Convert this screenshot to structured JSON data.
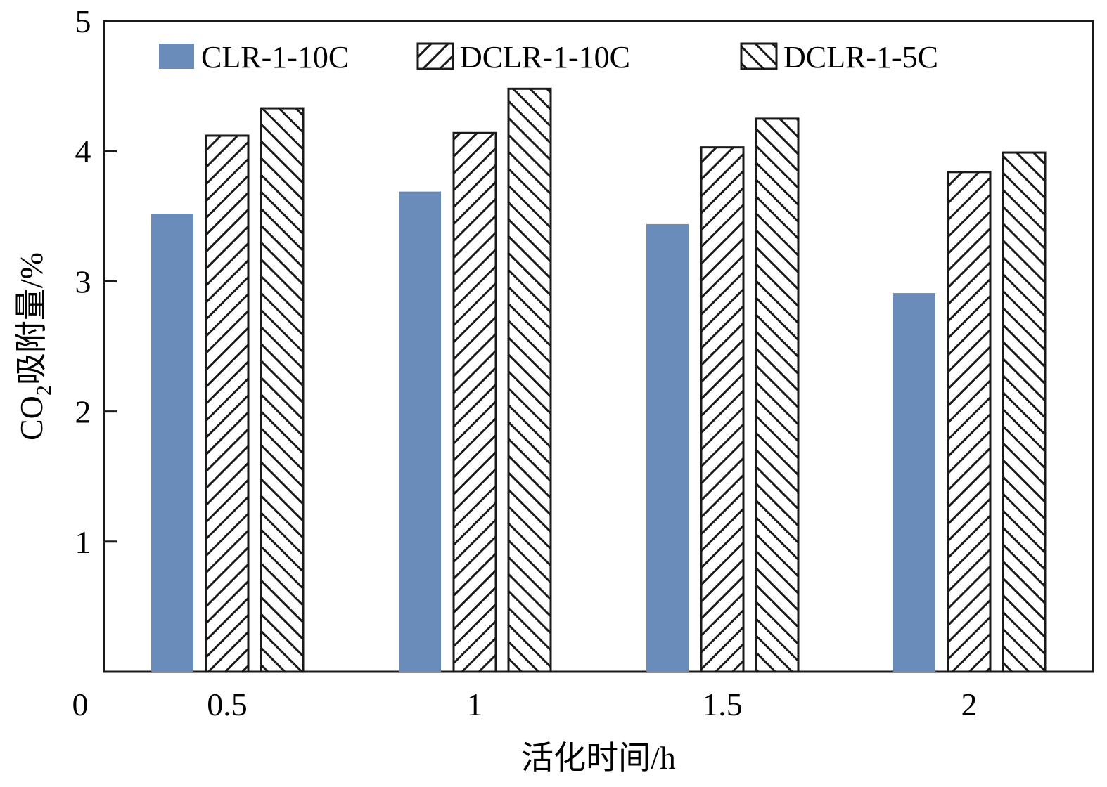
{
  "chart_data": {
    "type": "bar",
    "title": "",
    "xlabel": "活化时间/h",
    "ylabel": {
      "main": "CO",
      "subscript": "2",
      "rest": "吸附量/%"
    },
    "categories": [
      "0.5",
      "1",
      "1.5",
      "2"
    ],
    "origin_label": "0",
    "ylim": [
      0,
      5
    ],
    "yticks": [
      1,
      2,
      3,
      4,
      5
    ],
    "grid": false,
    "legend_position": "top",
    "series": [
      {
        "name": "CLR-1-10C",
        "values": [
          3.52,
          3.69,
          3.44,
          2.91
        ],
        "color": "#6a8cba",
        "pattern": "solid"
      },
      {
        "name": "DCLR-1-10C",
        "values": [
          4.12,
          4.14,
          4.03,
          3.84
        ],
        "color": "#1a1a1a",
        "pattern": "hatch-forward"
      },
      {
        "name": "DCLR-1-5C",
        "values": [
          4.33,
          4.48,
          4.25,
          3.99
        ],
        "color": "#1a1a1a",
        "pattern": "hatch-backward"
      }
    ]
  }
}
